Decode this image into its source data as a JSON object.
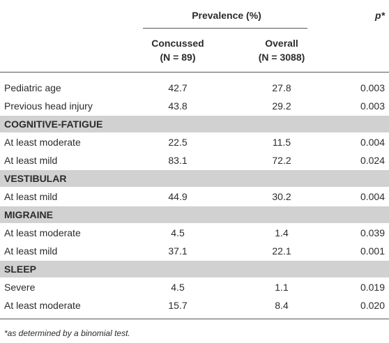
{
  "table": {
    "header": {
      "group_label": "Prevalence (%)",
      "p_label": "p*",
      "columns": [
        {
          "name": "Concussed",
          "n": "(N = 89)"
        },
        {
          "name": "Overall",
          "n": "(N = 3088)"
        }
      ]
    },
    "rows": [
      [
        "Pediatric age",
        "42.7",
        "27.8",
        "0.003"
      ],
      [
        "Previous head injury",
        "43.8",
        "29.2",
        "0.003"
      ]
    ],
    "sections": [
      {
        "title": "COGNITIVE-FATIGUE",
        "rows": [
          [
            "At least moderate",
            "22.5",
            "11.5",
            "0.004"
          ],
          [
            "At least mild",
            "83.1",
            "72.2",
            "0.024"
          ]
        ]
      },
      {
        "title": "VESTIBULAR",
        "rows": [
          [
            "At least mild",
            "44.9",
            "30.2",
            "0.004"
          ]
        ]
      },
      {
        "title": "MIGRAINE",
        "rows": [
          [
            "At least moderate",
            "4.5",
            "1.4",
            "0.039"
          ],
          [
            "At least mild",
            "37.1",
            "22.1",
            "0.001"
          ]
        ]
      },
      {
        "title": "SLEEP",
        "rows": [
          [
            "Severe",
            "4.5",
            "1.1",
            "0.019"
          ],
          [
            "At least moderate",
            "15.7",
            "8.4",
            "0.020"
          ]
        ]
      }
    ],
    "footnote": "*as determined by a binomial test."
  }
}
